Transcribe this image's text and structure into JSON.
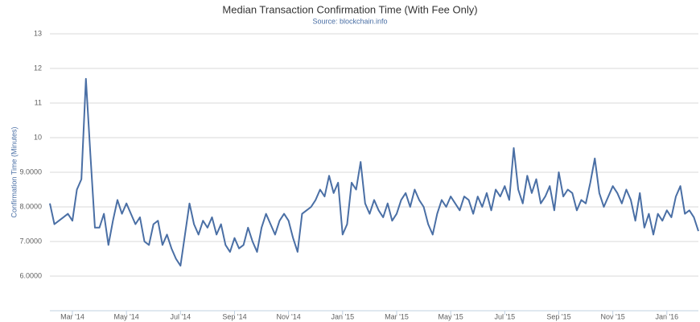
{
  "chart_data": {
    "type": "line",
    "title": "Median Transaction Confirmation Time (With Fee Only)",
    "subtitle": "Source: blockchain.info",
    "y_label": "Confirmation Time (Minutes)",
    "categories": [
      null,
      null,
      null,
      null,
      null,
      "Mar '14",
      null,
      null,
      null,
      null,
      null,
      null,
      null,
      null,
      null,
      null,
      null,
      "May '14",
      null,
      null,
      null,
      null,
      null,
      null,
      null,
      null,
      null,
      null,
      null,
      "Jul '14",
      null,
      null,
      null,
      null,
      null,
      null,
      null,
      null,
      null,
      null,
      null,
      "Sep '14",
      null,
      null,
      null,
      null,
      null,
      null,
      null,
      null,
      null,
      null,
      null,
      "Nov '14",
      null,
      null,
      null,
      null,
      null,
      null,
      null,
      null,
      null,
      null,
      null,
      "Jan '15",
      null,
      null,
      null,
      null,
      null,
      null,
      null,
      null,
      null,
      null,
      null,
      "Mar '15",
      null,
      null,
      null,
      null,
      null,
      null,
      null,
      null,
      null,
      null,
      null,
      "May '15",
      null,
      null,
      null,
      null,
      null,
      null,
      null,
      null,
      null,
      null,
      null,
      "Jul '15",
      null,
      null,
      null,
      null,
      null,
      null,
      null,
      null,
      null,
      null,
      null,
      "Sep '15",
      null,
      null,
      null,
      null,
      null,
      null,
      null,
      null,
      null,
      null,
      null,
      "Nov '15",
      null,
      null,
      null,
      null,
      null,
      null,
      null,
      null,
      null,
      null,
      null,
      "Jan '16",
      null,
      null,
      null,
      null,
      null,
      null,
      null
    ],
    "values": [
      8.1,
      7.5,
      7.6,
      7.7,
      7.8,
      7.6,
      8.5,
      8.8,
      11.7,
      9.5,
      7.4,
      7.4,
      7.8,
      6.9,
      7.6,
      8.2,
      7.8,
      8.1,
      7.8,
      7.5,
      7.7,
      7.0,
      6.9,
      7.5,
      7.6,
      6.9,
      7.2,
      6.8,
      6.5,
      6.3,
      7.2,
      8.1,
      7.5,
      7.2,
      7.6,
      7.4,
      7.7,
      7.2,
      7.5,
      6.9,
      6.7,
      7.1,
      6.8,
      6.9,
      7.4,
      7.0,
      6.7,
      7.4,
      7.8,
      7.5,
      7.2,
      7.6,
      7.8,
      7.6,
      7.1,
      6.7,
      7.8,
      7.9,
      8.0,
      8.2,
      8.5,
      8.3,
      8.9,
      8.4,
      8.7,
      7.2,
      7.5,
      8.7,
      8.5,
      9.3,
      8.1,
      7.8,
      8.2,
      7.9,
      7.7,
      8.1,
      7.6,
      7.8,
      8.2,
      8.4,
      8.0,
      8.5,
      8.2,
      8.0,
      7.5,
      7.2,
      7.8,
      8.2,
      8.0,
      8.3,
      8.1,
      7.9,
      8.3,
      8.2,
      7.8,
      8.3,
      8.0,
      8.4,
      7.9,
      8.5,
      8.3,
      8.6,
      8.2,
      9.7,
      8.5,
      8.1,
      8.9,
      8.4,
      8.8,
      8.1,
      8.3,
      8.6,
      7.9,
      9.0,
      8.3,
      8.5,
      8.4,
      7.9,
      8.2,
      8.1,
      8.7,
      9.4,
      8.4,
      8.0,
      8.3,
      8.6,
      8.4,
      8.1,
      8.5,
      8.2,
      7.6,
      8.4,
      7.4,
      7.8,
      7.2,
      7.8,
      7.6,
      7.9,
      7.7,
      8.3,
      8.6,
      7.8,
      7.9,
      7.7,
      7.3
    ],
    "color": "#4a6fa5",
    "ylim": [
      5,
      13
    ],
    "yticks": [
      {
        "value": 6,
        "label": "6.0000"
      },
      {
        "value": 7,
        "label": "7.0000"
      },
      {
        "value": 8,
        "label": "8.0000"
      },
      {
        "value": 9,
        "label": "9.0000"
      },
      10,
      11,
      12,
      13
    ],
    "grid": true
  }
}
